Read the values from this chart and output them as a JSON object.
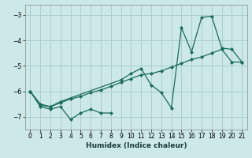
{
  "xlabel": "Humidex (Indice chaleur)",
  "bg_color": "#cce8e8",
  "grid_color": "#aacece",
  "line_color": "#1a6b5a",
  "xlim": [
    -0.5,
    21.5
  ],
  "ylim": [
    -7.5,
    -2.6
  ],
  "yticks": [
    -7,
    -6,
    -5,
    -4,
    -3
  ],
  "xticks": [
    0,
    1,
    2,
    3,
    4,
    5,
    6,
    7,
    8,
    9,
    10,
    11,
    12,
    13,
    14,
    15,
    16,
    17,
    18,
    19,
    20,
    21
  ],
  "series": [
    {
      "x": [
        0,
        1,
        2,
        3,
        4,
        5,
        6,
        7,
        8
      ],
      "y": [
        -6.0,
        -6.6,
        -6.7,
        -6.6,
        -7.1,
        -6.85,
        -6.7,
        -6.85,
        -6.85
      ]
    },
    {
      "x": [
        0,
        1,
        2,
        3,
        4,
        5,
        6,
        7,
        8,
        9,
        10,
        11,
        12,
        13,
        14,
        15,
        16,
        17,
        18,
        19,
        20,
        21
      ],
      "y": [
        -6.0,
        -6.55,
        -6.6,
        -6.45,
        -6.3,
        -6.2,
        -6.05,
        -5.95,
        -5.8,
        -5.65,
        -5.5,
        -5.35,
        -5.3,
        -5.2,
        -5.05,
        -4.9,
        -4.75,
        -4.65,
        -4.5,
        -4.35,
        -4.85,
        -4.85
      ]
    },
    {
      "x": [
        0,
        1,
        2,
        3,
        9,
        10,
        11,
        12,
        13,
        14,
        15,
        16,
        17,
        18,
        19,
        20,
        21
      ],
      "y": [
        -6.0,
        -6.5,
        -6.6,
        -6.4,
        -5.55,
        -5.3,
        -5.1,
        -5.75,
        -6.05,
        -6.65,
        -3.5,
        -4.45,
        -3.1,
        -3.05,
        -4.3,
        -4.35,
        -4.85
      ]
    }
  ]
}
